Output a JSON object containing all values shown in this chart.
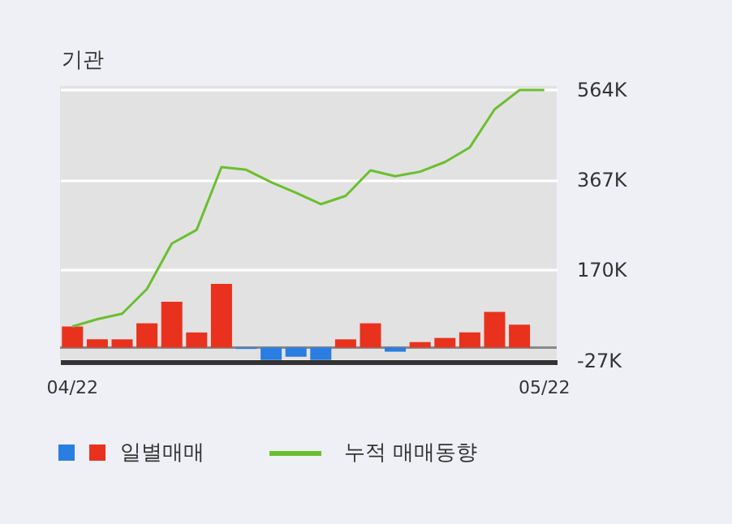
{
  "chart_data": {
    "type": "bar",
    "title": "기관",
    "categories": [
      "04/22",
      null,
      null,
      null,
      null,
      null,
      null,
      null,
      null,
      null,
      null,
      null,
      null,
      null,
      null,
      null,
      null,
      null,
      null,
      "05/22"
    ],
    "series": [
      {
        "name": "일별매매",
        "colors": [
          "#e8321e",
          "#e8321e",
          "#e8321e",
          "#e8321e",
          "#e8321e",
          "#e8321e",
          "#e8321e",
          "#2a7de1",
          "#2a7de1",
          "#2a7de1",
          "#2a7de1",
          "#e8321e",
          "#e8321e",
          "#2a7de1",
          "#e8321e",
          "#e8321e",
          "#e8321e",
          "#e8321e",
          "#e8321e",
          "#e8321e"
        ],
        "values": [
          46,
          18,
          18,
          53,
          100,
          33,
          139,
          -3,
          -27,
          -20,
          -27,
          18,
          53,
          -9,
          12,
          21,
          33,
          78,
          50,
          0
        ]
      },
      {
        "name": "누적 매매동향",
        "type": "line",
        "color": "#6abf2f",
        "values": [
          46,
          62,
          74,
          128,
          227,
          257,
          394,
          388,
          361,
          338,
          313,
          331,
          387,
          374,
          384,
          405,
          437,
          520,
          562,
          562
        ]
      }
    ],
    "ylim": [
      -31,
      571
    ],
    "yticks": [
      {
        "value": -27,
        "label": "-27K"
      },
      {
        "value": 170,
        "label": "170K"
      },
      {
        "value": 367,
        "label": "367K"
      },
      {
        "value": 564,
        "label": "564K"
      }
    ],
    "ref_lines": [
      {
        "axis": "y",
        "value": 0,
        "color": "#888888"
      }
    ],
    "grid": "y",
    "legend": "bottom"
  }
}
